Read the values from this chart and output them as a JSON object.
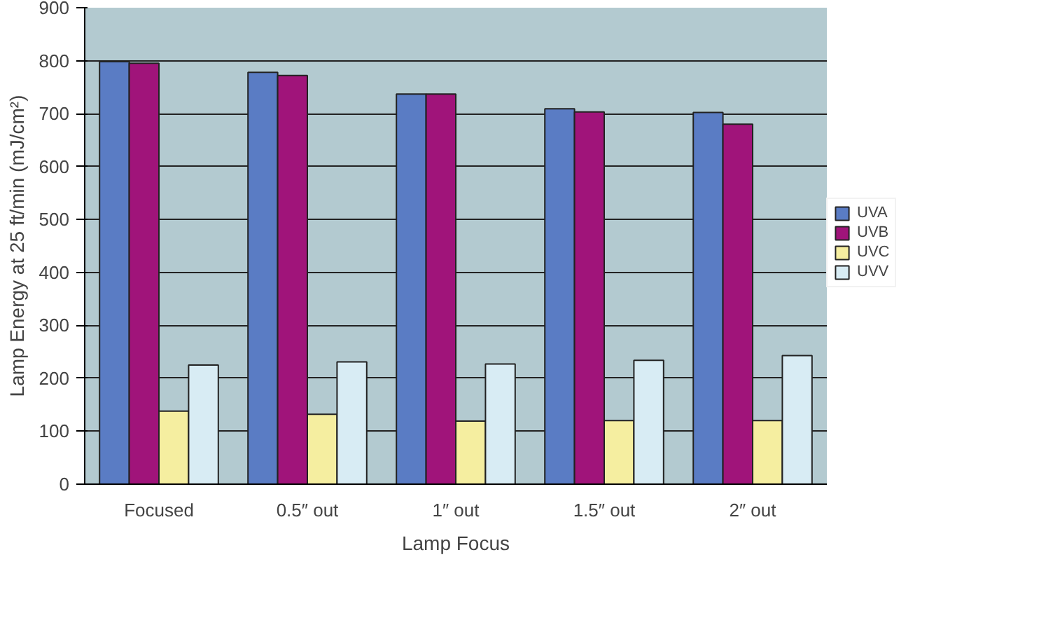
{
  "chart_data": {
    "type": "bar",
    "xlabel": "Lamp Focus",
    "ylabel": "Lamp Energy at 25 ft/min (mJ/cm²)",
    "categories": [
      "Focused",
      "0.5″ out",
      "1″ out",
      "1.5″ out",
      "2″ out"
    ],
    "series": [
      {
        "name": "UVA",
        "color": "#5a7cc4",
        "values": [
          798,
          778,
          737,
          709,
          702
        ]
      },
      {
        "name": "UVB",
        "color": "#a0147a",
        "values": [
          795,
          772,
          737,
          703,
          680
        ]
      },
      {
        "name": "UVC",
        "color": "#f5eea0",
        "values": [
          138,
          132,
          119,
          120,
          120
        ]
      },
      {
        "name": "UVV",
        "color": "#d8ecf4",
        "values": [
          225,
          231,
          227,
          234,
          243
        ]
      }
    ],
    "ylim": [
      0,
      900
    ],
    "yticks": [
      0,
      100,
      200,
      300,
      400,
      500,
      600,
      700,
      800,
      900
    ],
    "grid": "y",
    "legend": "right"
  }
}
